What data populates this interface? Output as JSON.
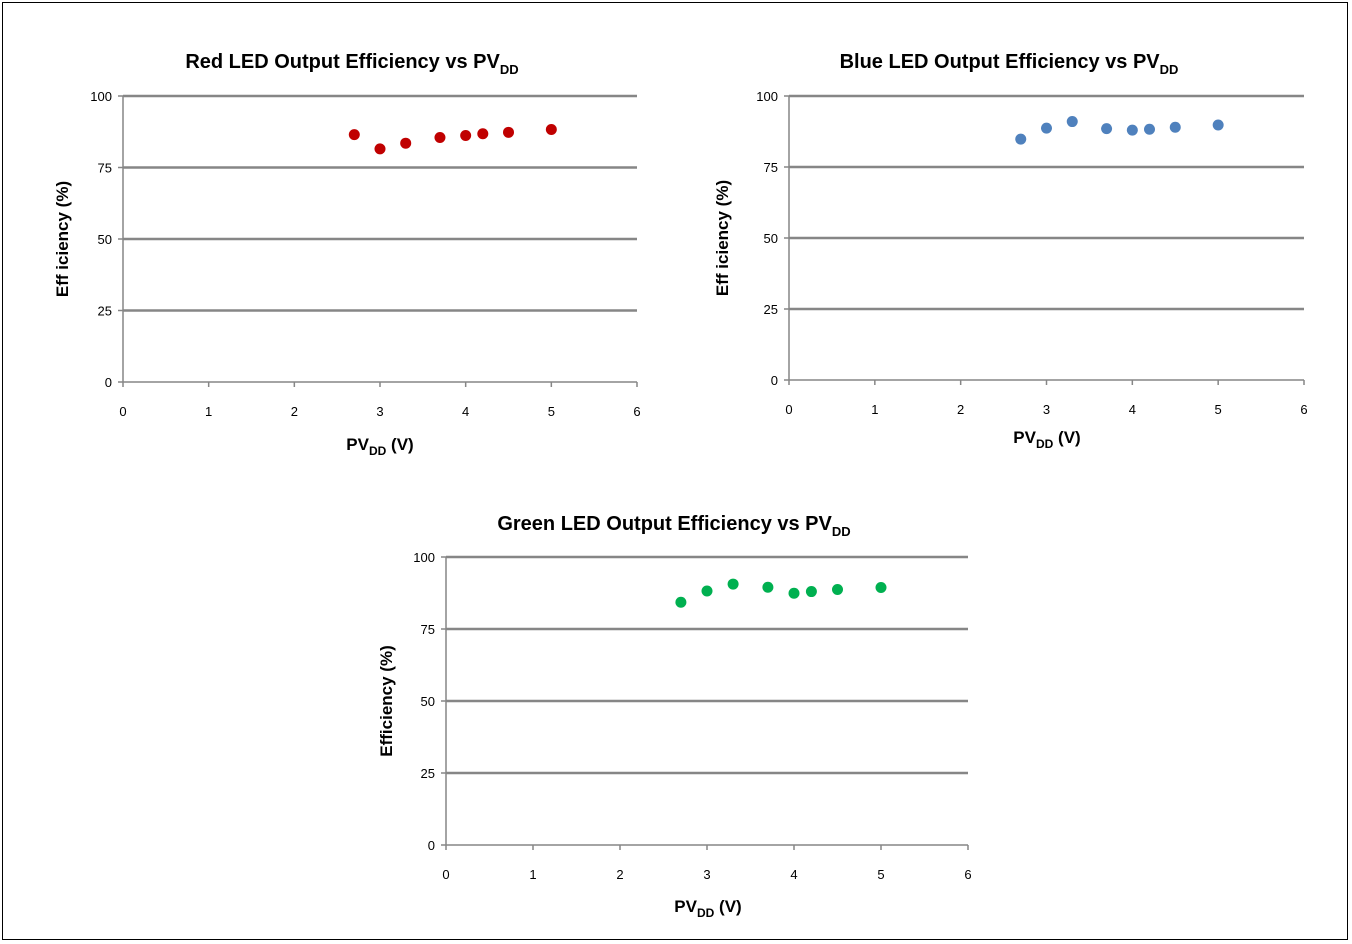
{
  "chart_data": [
    {
      "type": "scatter",
      "title": "Red LED Output Efficiency vs PV",
      "title_subscript": "DD",
      "xlabel": "PV",
      "xlabel_subscript": "DD",
      "xlabel_suffix": " (V)",
      "ylabel": "Eff iciency (%)",
      "xlim": [
        0,
        6
      ],
      "ylim": [
        0,
        100
      ],
      "xticks": [
        "0",
        "1",
        "2",
        "3",
        "4",
        "5",
        "6"
      ],
      "yticks": [
        "0",
        "25",
        "50",
        "75",
        "100"
      ],
      "grid": "horizontal",
      "color": "#c00000",
      "x": [
        2.7,
        3.0,
        3.3,
        3.7,
        4.0,
        4.2,
        4.5,
        5.0
      ],
      "y": [
        86.5,
        81.5,
        83.5,
        85.5,
        86.2,
        86.8,
        87.3,
        88.3
      ]
    },
    {
      "type": "scatter",
      "title": "Blue LED Output Efficiency vs PV",
      "title_subscript": "DD",
      "xlabel": "PV",
      "xlabel_subscript": "DD",
      "xlabel_suffix": " (V)",
      "ylabel": "Eff iciency (%)",
      "xlim": [
        0,
        6
      ],
      "ylim": [
        0,
        100
      ],
      "xticks": [
        "0",
        "1",
        "2",
        "3",
        "4",
        "5",
        "6"
      ],
      "yticks": [
        "0",
        "25",
        "50",
        "75",
        "100"
      ],
      "grid": "horizontal",
      "color": "#4f81bd",
      "x": [
        2.7,
        3.0,
        3.3,
        3.7,
        4.0,
        4.2,
        4.5,
        5.0
      ],
      "y": [
        84.8,
        88.7,
        91.0,
        88.5,
        88.0,
        88.3,
        89.0,
        89.8
      ]
    },
    {
      "type": "scatter",
      "title": "Green LED Output Efficiency vs PV",
      "title_subscript": "DD",
      "xlabel": "PV",
      "xlabel_subscript": "DD",
      "xlabel_suffix": " (V)",
      "ylabel": "Efficiency (%)",
      "xlim": [
        0,
        6
      ],
      "ylim": [
        0,
        100
      ],
      "xticks": [
        "0",
        "1",
        "2",
        "3",
        "4",
        "5",
        "6"
      ],
      "yticks": [
        "0",
        "25",
        "50",
        "75",
        "100"
      ],
      "grid": "horizontal",
      "color": "#00b050",
      "x": [
        2.7,
        3.0,
        3.3,
        3.7,
        4.0,
        4.2,
        4.5,
        5.0
      ],
      "y": [
        84.3,
        88.2,
        90.6,
        89.5,
        87.4,
        88.0,
        88.7,
        89.4
      ]
    }
  ]
}
